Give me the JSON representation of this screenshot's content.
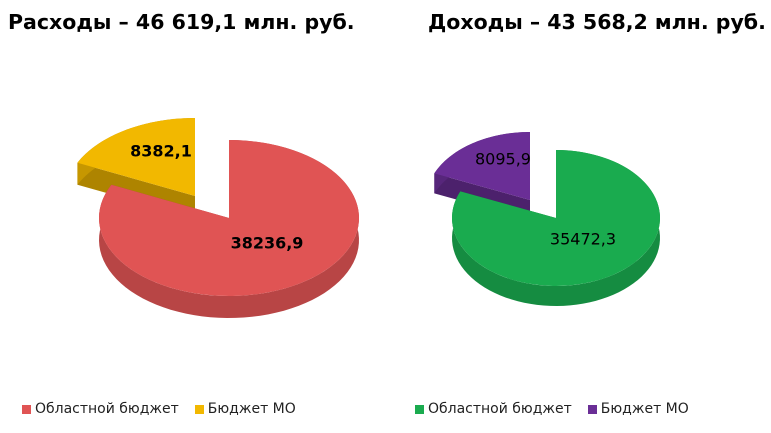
{
  "title": {
    "left": "Расходы – 46 619,1 млн. руб.",
    "right": "Доходы – 43 568,2 млн. руб."
  },
  "chart_data": [
    {
      "type": "pie",
      "title": "Расходы – 46 619,1 млн. руб.",
      "labels": [
        "Областной бюджет",
        "Бюджет МО"
      ],
      "values": [
        38236.9,
        8382.1
      ],
      "value_labels": [
        "38236,9",
        "8382,1"
      ],
      "colors": [
        "#e05454",
        "#f2b800"
      ],
      "label_bold": true,
      "style": "3d-exploded",
      "legend": "bottom-left"
    },
    {
      "type": "pie",
      "title": "Доходы – 43 568,2 млн. руб.",
      "labels": [
        "Областной бюджет",
        "Бюджет МО"
      ],
      "values": [
        35472.3,
        8095.9
      ],
      "value_labels": [
        "35472,3",
        "8095,9"
      ],
      "colors": [
        "#1aab4f",
        "#6a2e96"
      ],
      "label_bold": false,
      "style": "3d-exploded",
      "legend": "bottom-right"
    }
  ]
}
